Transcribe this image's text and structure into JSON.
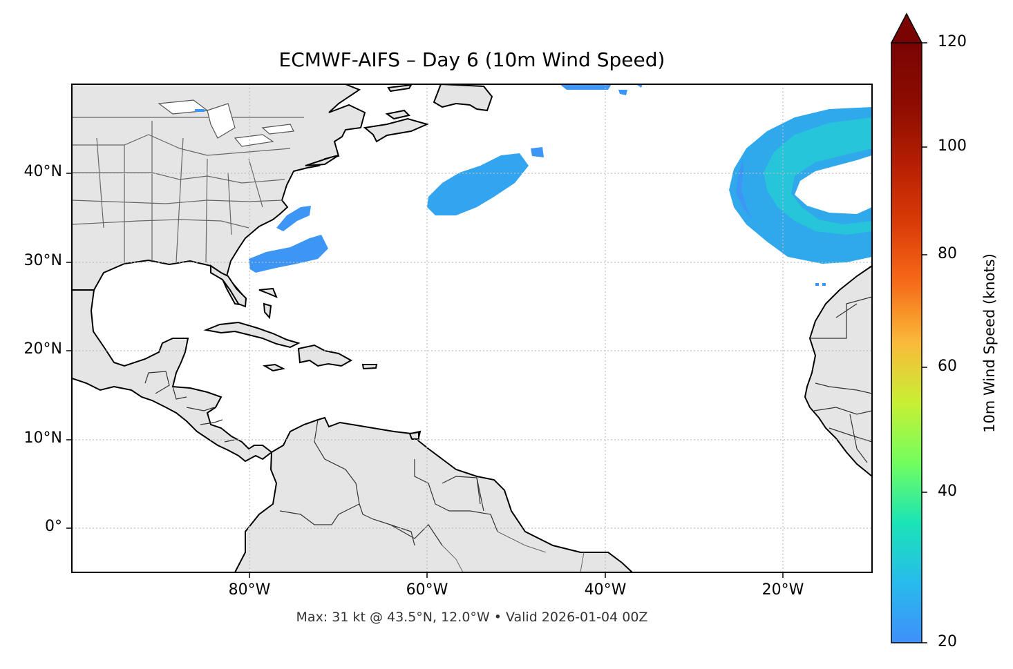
{
  "title": "ECMWF-AIFS – Day 6 (10m Wind Speed)",
  "footer": "Max: 31 kt @ 43.5°N, 12.0°W • Valid 2026-01-04 00Z",
  "map": {
    "lon_range": [
      -100,
      -10
    ],
    "lat_range": [
      -5,
      50
    ],
    "lat_ticks": [
      {
        "value": 40,
        "label": "40°N"
      },
      {
        "value": 30,
        "label": "30°N"
      },
      {
        "value": 20,
        "label": "20°N"
      },
      {
        "value": 10,
        "label": "10°N"
      },
      {
        "value": 0,
        "label": "0°"
      }
    ],
    "lon_ticks": [
      {
        "value": -80,
        "label": "80°W"
      },
      {
        "value": -60,
        "label": "60°W"
      },
      {
        "value": -40,
        "label": "40°W"
      },
      {
        "value": -20,
        "label": "20°W"
      }
    ],
    "land_color": "#e5e5e5",
    "coast_color": "#000000",
    "border_color": "#666666",
    "grid": "dotted"
  },
  "colorbar": {
    "label": "10m Wind Speed (knots)",
    "min": 20,
    "max": 120,
    "extend": "max",
    "ticks": [
      {
        "value": 20,
        "label": "20"
      },
      {
        "value": 40,
        "label": "40"
      },
      {
        "value": 60,
        "label": "60"
      },
      {
        "value": 80,
        "label": "80"
      },
      {
        "value": 100,
        "label": "100"
      },
      {
        "value": 120,
        "label": "120"
      }
    ],
    "colormap": "turbo",
    "extend_color": "#7a0403"
  },
  "wind_max": {
    "speed_kt": 31,
    "lat": 43.5,
    "lon": -12.0
  }
}
